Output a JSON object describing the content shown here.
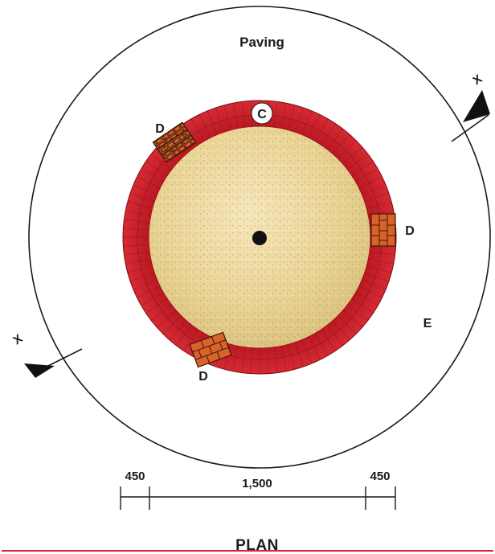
{
  "labels": {
    "paving": "Paving",
    "c": "C",
    "d_upper_left": "D",
    "d_right": "D",
    "d_lower": "D",
    "e": "E",
    "x_upper_right": "X",
    "x_lower_left": "X"
  },
  "dimensions": {
    "left": "450",
    "middle": "1,500",
    "right": "450"
  },
  "caption": "PLAN",
  "colors": {
    "brick_ring": "#c8202a",
    "brick_ring_dark": "#9e1018",
    "brick_d": "#d9612a",
    "sand": "#e8d29a",
    "rule": "#d42a2a",
    "line": "#1a1a1a"
  }
}
